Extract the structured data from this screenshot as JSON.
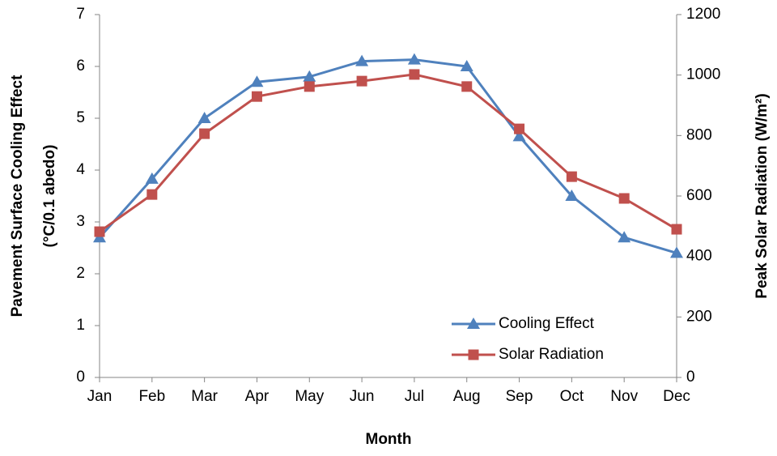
{
  "chart_data": {
    "type": "line",
    "xlabel": "Month",
    "ylabel": [
      "Pavement Surface Cooling Effect",
      "(°C/0.1 abedo)"
    ],
    "y2label": "Peak Solar Radiation (W/m²)",
    "categories": [
      "Jan",
      "Feb",
      "Mar",
      "Apr",
      "May",
      "Jun",
      "Jul",
      "Aug",
      "Sep",
      "Oct",
      "Nov",
      "Dec"
    ],
    "series": [
      {
        "name": "Cooling Effect",
        "color": "#4f81bd",
        "marker": "triangle",
        "values": [
          2.7,
          3.83,
          5.0,
          5.7,
          5.8,
          6.1,
          6.13,
          6.0,
          4.65,
          3.5,
          2.7,
          2.4
        ]
      },
      {
        "name": "Solar Radiation",
        "color": "#c0504d",
        "marker": "square",
        "axis": "y2",
        "values": [
          482,
          605,
          806,
          929,
          962,
          980,
          1002,
          962,
          822,
          664,
          592,
          490
        ]
      }
    ],
    "ylim": [
      0,
      7
    ],
    "yticks": [
      0,
      1,
      2,
      3,
      4,
      5,
      6,
      7
    ],
    "y2lim": [
      0,
      1200
    ],
    "y2ticks": [
      0,
      200,
      400,
      600,
      800,
      1000,
      1200
    ],
    "grid": false,
    "legend": "lower right"
  }
}
